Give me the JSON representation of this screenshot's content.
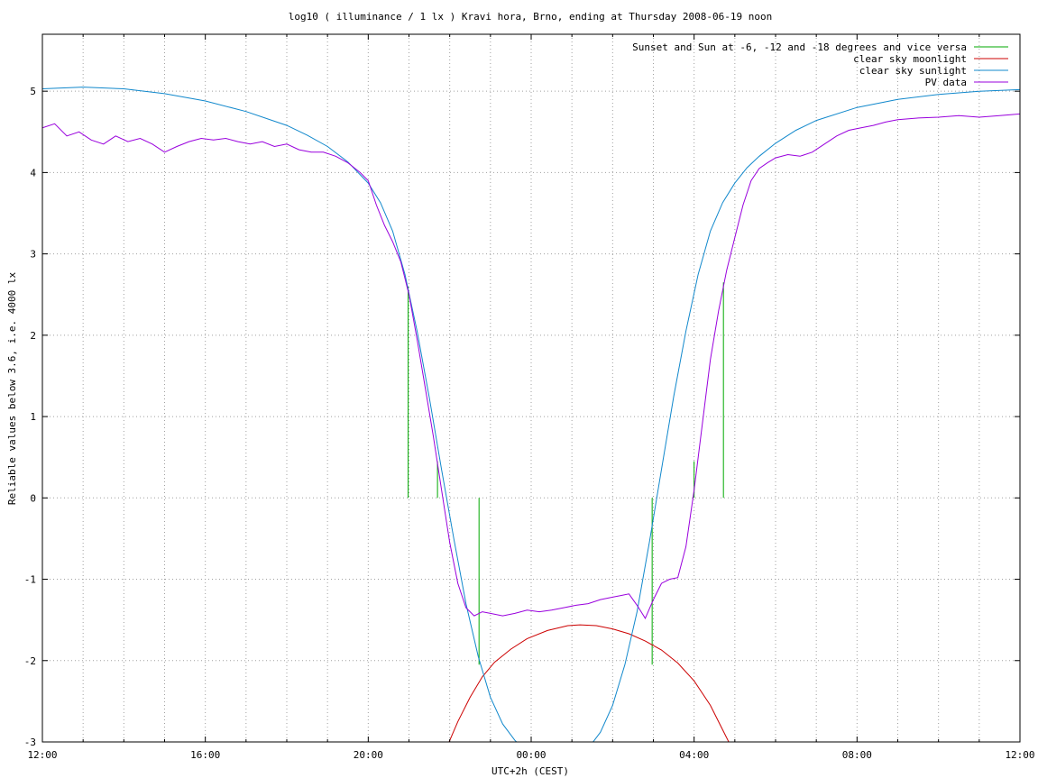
{
  "chart_data": {
    "type": "line",
    "title": "log10 ( illuminance / 1 lx ) Kravi hora, Brno, ending at Thursday 2008-06-19 noon",
    "xlabel": "UTC+2h (CEST)",
    "ylabel": "Reliable values below 3.6, i.e. 4000 lx",
    "xlim": [
      12,
      36
    ],
    "ylim": [
      -3,
      5.7
    ],
    "x_ticks": [
      {
        "value": 12,
        "label": "12:00"
      },
      {
        "value": 16,
        "label": "16:00"
      },
      {
        "value": 20,
        "label": "20:00"
      },
      {
        "value": 24,
        "label": "00:00"
      },
      {
        "value": 28,
        "label": "04:00"
      },
      {
        "value": 32,
        "label": "08:00"
      },
      {
        "value": 36,
        "label": "12:00"
      }
    ],
    "y_ticks": [
      {
        "value": 5,
        "label": "5"
      },
      {
        "value": 4,
        "label": "4"
      },
      {
        "value": 3,
        "label": "3"
      },
      {
        "value": 2,
        "label": "2"
      },
      {
        "value": 1,
        "label": "1"
      },
      {
        "value": 0,
        "label": "0"
      },
      {
        "value": -1,
        "label": "-1"
      },
      {
        "value": -2,
        "label": "-2"
      },
      {
        "value": -3,
        "label": "-3"
      }
    ],
    "grid": true,
    "legend_position": "top-right",
    "series": [
      {
        "name": "Sunset and Sun at -6, -12 and -18 degrees and vice versa",
        "color": "#00aa00",
        "kind": "vertical-markers",
        "markers": [
          {
            "x": 20.98,
            "y_top": 2.6
          },
          {
            "x": 21.7,
            "y_top": 0.45
          },
          {
            "x": 22.72,
            "y_top": -2.05
          },
          {
            "x": 26.97,
            "y_top": -2.05
          },
          {
            "x": 28.0,
            "y_top": 0.45
          },
          {
            "x": 28.72,
            "y_top": 2.65
          }
        ]
      },
      {
        "name": "clear sky moonlight",
        "color": "#cc0000",
        "x": [
          21.9,
          22.2,
          22.5,
          22.8,
          23.1,
          23.5,
          23.9,
          24.4,
          24.9,
          25.2,
          25.6,
          26.0,
          26.4,
          26.8,
          27.2,
          27.6,
          28.0,
          28.4,
          28.7,
          28.95
        ],
        "y": [
          -3.1,
          -2.75,
          -2.45,
          -2.2,
          -2.02,
          -1.86,
          -1.73,
          -1.63,
          -1.57,
          -1.56,
          -1.57,
          -1.61,
          -1.67,
          -1.76,
          -1.87,
          -2.03,
          -2.25,
          -2.55,
          -2.85,
          -3.1
        ]
      },
      {
        "name": "clear sky sunlight",
        "color": "#1188cc",
        "x": [
          12,
          13,
          14,
          15,
          16,
          17,
          18,
          18.5,
          19,
          19.5,
          20,
          20.3,
          20.6,
          20.9,
          21.2,
          21.5,
          21.8,
          22.1,
          22.4,
          22.7,
          23.0,
          23.3,
          23.6,
          23.9,
          24.2,
          24.5,
          24.8,
          25.1,
          25.4,
          25.7,
          26.0,
          26.3,
          26.6,
          26.9,
          27.2,
          27.5,
          27.8,
          28.1,
          28.4,
          28.7,
          29.0,
          29.3,
          29.6,
          30.0,
          30.5,
          31,
          32,
          33,
          34,
          35,
          36
        ],
        "y": [
          5.03,
          5.05,
          5.03,
          4.97,
          4.88,
          4.75,
          4.58,
          4.46,
          4.32,
          4.13,
          3.87,
          3.63,
          3.28,
          2.75,
          2.05,
          1.23,
          0.35,
          -0.5,
          -1.3,
          -1.95,
          -2.45,
          -2.78,
          -2.98,
          -3.12,
          -3.2,
          -3.25,
          -3.25,
          -3.2,
          -3.08,
          -2.88,
          -2.55,
          -2.05,
          -1.4,
          -0.55,
          0.35,
          1.25,
          2.05,
          2.75,
          3.28,
          3.63,
          3.87,
          4.06,
          4.2,
          4.36,
          4.52,
          4.64,
          4.8,
          4.9,
          4.96,
          5.0,
          5.02
        ]
      },
      {
        "name": "PV data",
        "color": "#9900dd",
        "x": [
          12.0,
          12.3,
          12.6,
          12.9,
          13.2,
          13.5,
          13.8,
          14.1,
          14.4,
          14.7,
          15.0,
          15.3,
          15.6,
          15.9,
          16.2,
          16.5,
          16.8,
          17.1,
          17.4,
          17.7,
          18.0,
          18.3,
          18.6,
          18.9,
          19.2,
          19.5,
          19.8,
          20.0,
          20.2,
          20.4,
          20.6,
          20.8,
          21.0,
          21.2,
          21.4,
          21.6,
          21.8,
          22.0,
          22.2,
          22.4,
          22.6,
          22.8,
          23.0,
          23.3,
          23.6,
          23.9,
          24.2,
          24.5,
          24.8,
          25.1,
          25.4,
          25.7,
          26.0,
          26.2,
          26.4,
          26.6,
          26.8,
          27.0,
          27.2,
          27.4,
          27.6,
          27.8,
          28.0,
          28.2,
          28.4,
          28.6,
          28.8,
          29.0,
          29.2,
          29.4,
          29.6,
          29.8,
          30.0,
          30.3,
          30.6,
          30.9,
          31.2,
          31.5,
          31.8,
          32.1,
          32.4,
          32.7,
          33.0,
          33.5,
          34.0,
          34.5,
          35.0,
          35.5,
          36.0
        ],
        "y": [
          4.55,
          4.6,
          4.45,
          4.5,
          4.4,
          4.35,
          4.45,
          4.38,
          4.42,
          4.35,
          4.25,
          4.32,
          4.38,
          4.42,
          4.4,
          4.42,
          4.38,
          4.35,
          4.38,
          4.32,
          4.35,
          4.28,
          4.25,
          4.25,
          4.2,
          4.12,
          4.0,
          3.9,
          3.6,
          3.35,
          3.15,
          2.9,
          2.5,
          1.95,
          1.35,
          0.75,
          0.1,
          -0.55,
          -1.05,
          -1.35,
          -1.45,
          -1.4,
          -1.42,
          -1.45,
          -1.42,
          -1.38,
          -1.4,
          -1.38,
          -1.35,
          -1.32,
          -1.3,
          -1.25,
          -1.22,
          -1.2,
          -1.18,
          -1.32,
          -1.48,
          -1.25,
          -1.05,
          -1.0,
          -0.98,
          -0.6,
          0.1,
          0.9,
          1.7,
          2.3,
          2.8,
          3.2,
          3.6,
          3.9,
          4.05,
          4.12,
          4.18,
          4.22,
          4.2,
          4.25,
          4.35,
          4.45,
          4.52,
          4.55,
          4.58,
          4.62,
          4.65,
          4.67,
          4.68,
          4.7,
          4.68,
          4.7,
          4.72
        ]
      }
    ]
  }
}
